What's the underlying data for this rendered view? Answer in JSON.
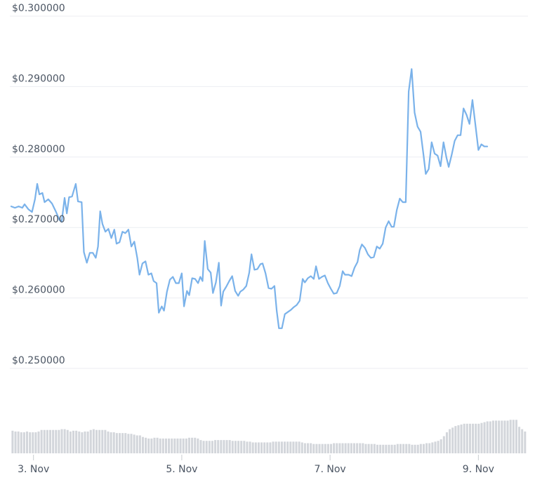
{
  "chart_data": {
    "type": "line",
    "ylabels": [
      "$0.300000",
      "$0.290000",
      "$0.280000",
      "$0.270000",
      "$0.260000",
      "$0.250000"
    ],
    "yticks": [
      0.3,
      0.29,
      0.28,
      0.27,
      0.26,
      0.25
    ],
    "ylim": [
      0.25,
      0.3
    ],
    "xlim": [
      2.7,
      9.65
    ],
    "xticks": [
      {
        "value": 3,
        "label": "3. Nov"
      },
      {
        "value": 5,
        "label": "5. Nov"
      },
      {
        "value": 7,
        "label": "7. Nov"
      },
      {
        "value": 9,
        "label": "9. Nov"
      }
    ],
    "grid": true,
    "series": [
      {
        "color": "#7ab2ea",
        "points": [
          [
            2.7,
            0.273
          ],
          [
            2.75,
            0.2728
          ],
          [
            2.8,
            0.273
          ],
          [
            2.85,
            0.2728
          ],
          [
            2.88,
            0.2733
          ],
          [
            2.93,
            0.2726
          ],
          [
            2.98,
            0.2722
          ],
          [
            3.02,
            0.274
          ],
          [
            3.05,
            0.2762
          ],
          [
            3.08,
            0.2747
          ],
          [
            3.12,
            0.2749
          ],
          [
            3.15,
            0.2736
          ],
          [
            3.2,
            0.274
          ],
          [
            3.25,
            0.2734
          ],
          [
            3.3,
            0.2723
          ],
          [
            3.35,
            0.2711
          ],
          [
            3.38,
            0.2708
          ],
          [
            3.42,
            0.2742
          ],
          [
            3.45,
            0.272
          ],
          [
            3.48,
            0.2743
          ],
          [
            3.52,
            0.2744
          ],
          [
            3.57,
            0.2762
          ],
          [
            3.6,
            0.2737
          ],
          [
            3.65,
            0.2736
          ],
          [
            3.68,
            0.2665
          ],
          [
            3.72,
            0.265
          ],
          [
            3.76,
            0.2664
          ],
          [
            3.8,
            0.2664
          ],
          [
            3.84,
            0.2657
          ],
          [
            3.87,
            0.2673
          ],
          [
            3.9,
            0.2723
          ],
          [
            3.93,
            0.2705
          ],
          [
            3.97,
            0.2694
          ],
          [
            4.01,
            0.2698
          ],
          [
            4.05,
            0.2685
          ],
          [
            4.09,
            0.2697
          ],
          [
            4.12,
            0.2677
          ],
          [
            4.16,
            0.2679
          ],
          [
            4.2,
            0.2694
          ],
          [
            4.24,
            0.2692
          ],
          [
            4.28,
            0.2697
          ],
          [
            4.32,
            0.2673
          ],
          [
            4.36,
            0.268
          ],
          [
            4.4,
            0.2657
          ],
          [
            4.43,
            0.2633
          ],
          [
            4.47,
            0.2649
          ],
          [
            4.51,
            0.2652
          ],
          [
            4.55,
            0.2633
          ],
          [
            4.59,
            0.2635
          ],
          [
            4.62,
            0.2624
          ],
          [
            4.66,
            0.2621
          ],
          [
            4.69,
            0.2579
          ],
          [
            4.73,
            0.2588
          ],
          [
            4.76,
            0.2582
          ],
          [
            4.8,
            0.2609
          ],
          [
            4.84,
            0.2626
          ],
          [
            4.88,
            0.263
          ],
          [
            4.92,
            0.2621
          ],
          [
            4.96,
            0.2621
          ],
          [
            5.0,
            0.2635
          ],
          [
            5.03,
            0.2588
          ],
          [
            5.07,
            0.261
          ],
          [
            5.1,
            0.2604
          ],
          [
            5.14,
            0.2628
          ],
          [
            5.18,
            0.2627
          ],
          [
            5.22,
            0.2621
          ],
          [
            5.25,
            0.263
          ],
          [
            5.28,
            0.2624
          ],
          [
            5.31,
            0.2681
          ],
          [
            5.35,
            0.2641
          ],
          [
            5.39,
            0.2636
          ],
          [
            5.42,
            0.2607
          ],
          [
            5.46,
            0.2622
          ],
          [
            5.5,
            0.265
          ],
          [
            5.53,
            0.2589
          ],
          [
            5.56,
            0.2609
          ],
          [
            5.6,
            0.2616
          ],
          [
            5.64,
            0.2624
          ],
          [
            5.68,
            0.2631
          ],
          [
            5.72,
            0.261
          ],
          [
            5.76,
            0.2603
          ],
          [
            5.79,
            0.2609
          ],
          [
            5.83,
            0.2612
          ],
          [
            5.87,
            0.2617
          ],
          [
            5.91,
            0.2636
          ],
          [
            5.94,
            0.2662
          ],
          [
            5.98,
            0.264
          ],
          [
            6.02,
            0.2641
          ],
          [
            6.06,
            0.2648
          ],
          [
            6.09,
            0.2649
          ],
          [
            6.13,
            0.2635
          ],
          [
            6.17,
            0.2614
          ],
          [
            6.21,
            0.2613
          ],
          [
            6.25,
            0.2617
          ],
          [
            6.28,
            0.2582
          ],
          [
            6.31,
            0.2557
          ],
          [
            6.35,
            0.2557
          ],
          [
            6.39,
            0.2577
          ],
          [
            6.43,
            0.258
          ],
          [
            6.47,
            0.2583
          ],
          [
            6.51,
            0.2587
          ],
          [
            6.55,
            0.259
          ],
          [
            6.59,
            0.2596
          ],
          [
            6.63,
            0.2627
          ],
          [
            6.66,
            0.2622
          ],
          [
            6.7,
            0.2628
          ],
          [
            6.74,
            0.2631
          ],
          [
            6.78,
            0.2627
          ],
          [
            6.81,
            0.2645
          ],
          [
            6.85,
            0.2627
          ],
          [
            6.89,
            0.263
          ],
          [
            6.93,
            0.2632
          ],
          [
            6.97,
            0.2621
          ],
          [
            7.01,
            0.2613
          ],
          [
            7.05,
            0.2606
          ],
          [
            7.09,
            0.2607
          ],
          [
            7.13,
            0.2617
          ],
          [
            7.17,
            0.2638
          ],
          [
            7.2,
            0.2633
          ],
          [
            7.25,
            0.2633
          ],
          [
            7.29,
            0.2631
          ],
          [
            7.33,
            0.2643
          ],
          [
            7.37,
            0.2651
          ],
          [
            7.4,
            0.2668
          ],
          [
            7.43,
            0.2676
          ],
          [
            7.47,
            0.2671
          ],
          [
            7.51,
            0.2662
          ],
          [
            7.55,
            0.2657
          ],
          [
            7.59,
            0.2658
          ],
          [
            7.63,
            0.2673
          ],
          [
            7.67,
            0.267
          ],
          [
            7.71,
            0.2677
          ],
          [
            7.75,
            0.27
          ],
          [
            7.79,
            0.2709
          ],
          [
            7.83,
            0.2701
          ],
          [
            7.86,
            0.2701
          ],
          [
            7.9,
            0.2725
          ],
          [
            7.94,
            0.2741
          ],
          [
            7.98,
            0.2736
          ],
          [
            8.02,
            0.2736
          ],
          [
            8.06,
            0.2893
          ],
          [
            8.1,
            0.2925
          ],
          [
            8.14,
            0.2863
          ],
          [
            8.18,
            0.2843
          ],
          [
            8.22,
            0.2836
          ],
          [
            8.26,
            0.2803
          ],
          [
            8.29,
            0.2776
          ],
          [
            8.33,
            0.2783
          ],
          [
            8.37,
            0.2821
          ],
          [
            8.41,
            0.2805
          ],
          [
            8.45,
            0.2802
          ],
          [
            8.49,
            0.2787
          ],
          [
            8.53,
            0.2821
          ],
          [
            8.57,
            0.2799
          ],
          [
            8.6,
            0.2786
          ],
          [
            8.64,
            0.2803
          ],
          [
            8.68,
            0.2823
          ],
          [
            8.72,
            0.2831
          ],
          [
            8.76,
            0.2831
          ],
          [
            8.8,
            0.2869
          ],
          [
            8.84,
            0.286
          ],
          [
            8.88,
            0.2847
          ],
          [
            8.92,
            0.2881
          ],
          [
            8.96,
            0.2846
          ],
          [
            9.0,
            0.281
          ],
          [
            9.04,
            0.2818
          ],
          [
            9.08,
            0.2815
          ],
          [
            9.12,
            0.2815
          ]
        ]
      }
    ],
    "volume": {
      "color": "#d3d6db",
      "values": [
        29,
        28,
        28,
        27,
        27,
        28,
        27,
        27,
        27,
        28,
        30,
        30,
        30,
        30,
        30,
        30,
        30,
        31,
        31,
        30,
        28,
        29,
        29,
        28,
        27,
        28,
        28,
        30,
        31,
        30,
        30,
        30,
        30,
        28,
        27,
        27,
        26,
        26,
        26,
        26,
        25,
        25,
        24,
        23,
        23,
        21,
        20,
        19,
        19,
        20,
        20,
        19,
        19,
        19,
        19,
        19,
        19,
        19,
        19,
        19,
        19,
        20,
        20,
        20,
        19,
        17,
        16,
        16,
        16,
        16,
        17,
        17,
        17,
        17,
        17,
        17,
        16,
        16,
        16,
        16,
        16,
        15,
        15,
        14,
        14,
        14,
        14,
        14,
        14,
        14,
        15,
        15,
        15,
        15,
        15,
        15,
        15,
        15,
        15,
        15,
        14,
        13,
        13,
        13,
        12,
        12,
        12,
        12,
        12,
        12,
        12,
        13,
        13,
        13,
        13,
        13,
        13,
        13,
        13,
        13,
        13,
        13,
        12,
        12,
        12,
        12,
        11,
        11,
        11,
        11,
        11,
        11,
        11,
        12,
        12,
        12,
        12,
        12,
        11,
        11,
        11,
        12,
        12,
        13,
        13,
        14,
        15,
        16,
        18,
        22,
        27,
        31,
        33,
        35,
        36,
        37,
        38,
        38,
        38,
        38,
        38,
        38,
        39,
        40,
        41,
        41,
        42,
        42,
        42,
        42,
        42,
        42,
        43,
        43,
        43,
        34,
        31,
        28
      ],
      "max": 100
    }
  }
}
